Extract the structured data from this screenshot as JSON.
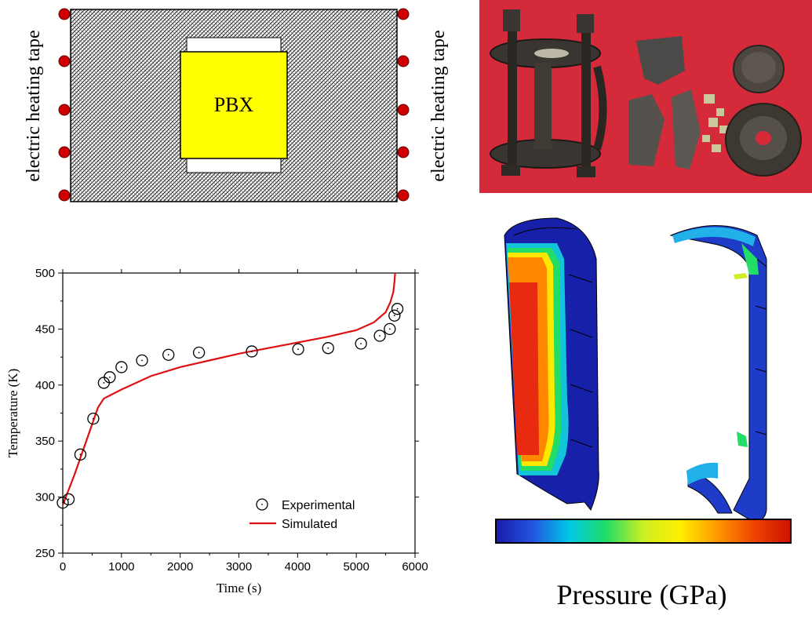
{
  "schematic": {
    "left_label": "electric heating tape",
    "right_label": "electric heating tape",
    "center_label": "PBX"
  },
  "colorbar": {
    "label": "Pressure (GPa)",
    "colors": [
      "#1a1aa8",
      "#2255e0",
      "#00c8e8",
      "#22dd66",
      "#ccee22",
      "#ffee00",
      "#ff9900",
      "#ee4400",
      "#cc1100"
    ]
  },
  "chart_data": {
    "type": "scatter",
    "title": "",
    "xlabel": "Time (s)",
    "ylabel": "Temperature (K)",
    "xlim": [
      0,
      6000
    ],
    "ylim": [
      250,
      500
    ],
    "xticks": [
      0,
      1000,
      2000,
      3000,
      4000,
      5000,
      6000
    ],
    "yticks": [
      250,
      300,
      350,
      400,
      450,
      500
    ],
    "legend_position": "bottom-right",
    "series": [
      {
        "name": "Experimental",
        "kind": "markers",
        "color": "#000000",
        "x": [
          0,
          100,
          300,
          520,
          700,
          800,
          1000,
          1350,
          1800,
          2320,
          3220,
          4010,
          4520,
          5080,
          5400,
          5570,
          5650,
          5700
        ],
        "y": [
          295,
          298,
          338,
          370,
          402,
          407,
          416,
          422,
          427,
          429,
          430,
          432,
          433,
          437,
          444,
          450,
          462,
          468
        ]
      },
      {
        "name": "Simulated",
        "kind": "line",
        "color": "#dd1111",
        "x": [
          0,
          200,
          400,
          600,
          700,
          1000,
          1500,
          2000,
          2500,
          3000,
          3500,
          4000,
          4500,
          5000,
          5300,
          5500,
          5580,
          5630,
          5650,
          5660
        ],
        "y": [
          293,
          320,
          350,
          380,
          388,
          396,
          408,
          416,
          422,
          428,
          433,
          438,
          443,
          449,
          456,
          465,
          474,
          483,
          492,
          500
        ]
      }
    ]
  }
}
